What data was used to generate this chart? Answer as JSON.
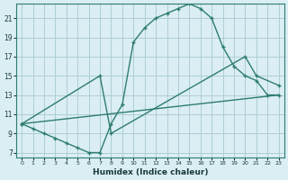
{
  "xlabel": "Humidex (Indice chaleur)",
  "bg_color": "#daeef3",
  "grid_color": "#aecdd6",
  "line_color": "#2e7d6e",
  "xlim": [
    -0.5,
    23.5
  ],
  "ylim": [
    6.5,
    22.5
  ],
  "xticks": [
    0,
    1,
    2,
    3,
    4,
    5,
    6,
    7,
    8,
    9,
    10,
    11,
    12,
    13,
    14,
    15,
    16,
    17,
    18,
    19,
    20,
    21,
    22,
    23
  ],
  "yticks": [
    7,
    9,
    11,
    13,
    15,
    17,
    19,
    21
  ],
  "line1_x": [
    0,
    1,
    2,
    3,
    4,
    5,
    6,
    7,
    8,
    9,
    10,
    11,
    12,
    13,
    14,
    15,
    16,
    17,
    18,
    19,
    20,
    21,
    22,
    23
  ],
  "line1_y": [
    10,
    9.5,
    9,
    8.5,
    8,
    7.5,
    7,
    7,
    10,
    12,
    18.5,
    20,
    21,
    21.5,
    22,
    22.5,
    22,
    21,
    18,
    16,
    15,
    14.5,
    13,
    13
  ],
  "line2_x": [
    0,
    7,
    8,
    20,
    21,
    23
  ],
  "line2_y": [
    10,
    15,
    9,
    17,
    15,
    14
  ],
  "line3_x": [
    0,
    23
  ],
  "line3_y": [
    10,
    13
  ]
}
